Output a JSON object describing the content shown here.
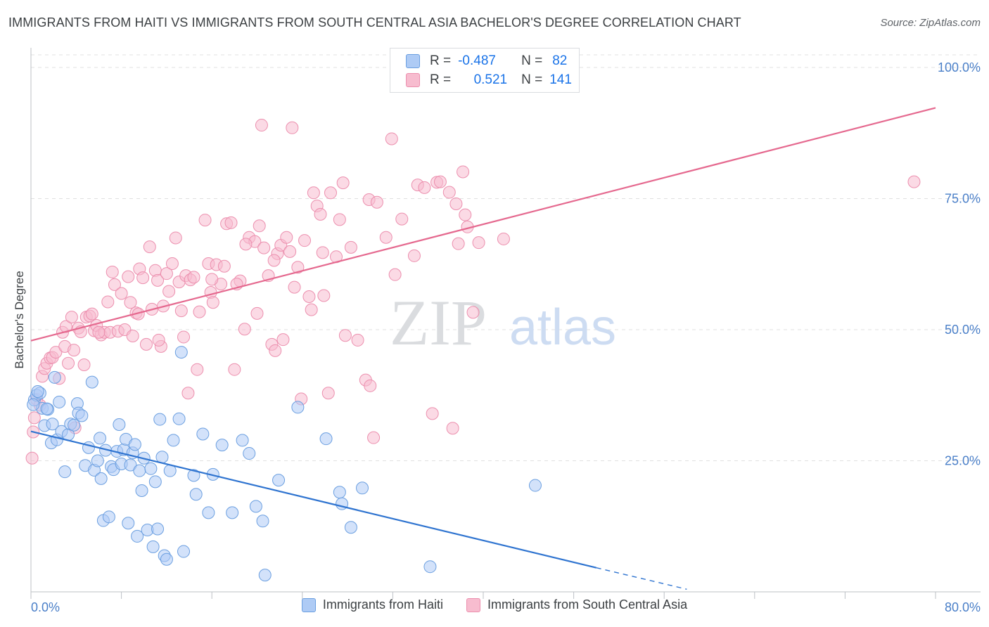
{
  "title": "IMMIGRANTS FROM HAITI VS IMMIGRANTS FROM SOUTH CENTRAL ASIA BACHELOR'S DEGREE CORRELATION CHART",
  "source": "Source: ZipAtlas.com",
  "watermark": {
    "zip": "ZIP",
    "atlas": "atlas"
  },
  "legend_top": {
    "haiti": {
      "r_label": "R =",
      "r_value": "-0.487",
      "n_label": "N =",
      "n_value": "82"
    },
    "asia": {
      "r_label": "R =",
      "r_value": "0.521",
      "n_label": "N =",
      "n_value": "141"
    }
  },
  "colors": {
    "haiti_fill": "#aecbf5",
    "haiti_stroke": "#6b9fe0",
    "haiti_line": "#2f74d0",
    "asia_fill": "#f7bccf",
    "asia_stroke": "#ec8fae",
    "asia_line": "#e5698f",
    "tick_label": "#4a7fc8",
    "grid": "#e0e0e0"
  },
  "chart_data": {
    "type": "scatter",
    "title": "IMMIGRANTS FROM HAITI VS IMMIGRANTS FROM SOUTH CENTRAL ASIA BACHELOR'S DEGREE CORRELATION CHART",
    "xlabel": "",
    "ylabel": "Bachelor's Degree",
    "xlim": [
      0,
      80
    ],
    "ylim": [
      0,
      100
    ],
    "x_tick_labels": [
      "0.0%",
      "80.0%"
    ],
    "y_ticks": [
      25,
      50,
      75,
      100
    ],
    "y_tick_labels": [
      "25.0%",
      "50.0%",
      "75.0%",
      "100.0%"
    ],
    "grid": true,
    "series": [
      {
        "name": "Immigrants from Haiti",
        "trend": {
          "x_start": 0,
          "y_start": 30.6,
          "x_solid_end": 50,
          "y_solid_end": 4.6,
          "x_dash_end": 58,
          "y_dash_end": 0.5
        },
        "points": [
          [
            0.3,
            36.6
          ],
          [
            0.5,
            37.5
          ],
          [
            0.8,
            37.9
          ],
          [
            1.0,
            35.0
          ],
          [
            1.2,
            31.7
          ],
          [
            1.5,
            34.8
          ],
          [
            1.8,
            28.4
          ],
          [
            1.9,
            32.0
          ],
          [
            2.1,
            40.9
          ],
          [
            2.3,
            29.0
          ],
          [
            2.5,
            36.2
          ],
          [
            2.7,
            30.6
          ],
          [
            3.0,
            22.9
          ],
          [
            3.3,
            30.0
          ],
          [
            3.5,
            32.0
          ],
          [
            3.8,
            31.8
          ],
          [
            4.1,
            35.9
          ],
          [
            4.2,
            34.1
          ],
          [
            4.5,
            33.6
          ],
          [
            4.8,
            24.1
          ],
          [
            5.1,
            27.5
          ],
          [
            5.4,
            40.0
          ],
          [
            5.6,
            23.2
          ],
          [
            5.9,
            25.0
          ],
          [
            6.1,
            29.3
          ],
          [
            6.2,
            21.6
          ],
          [
            6.4,
            13.6
          ],
          [
            6.6,
            27.0
          ],
          [
            6.9,
            14.3
          ],
          [
            7.1,
            23.9
          ],
          [
            7.3,
            23.3
          ],
          [
            7.6,
            26.8
          ],
          [
            7.8,
            31.9
          ],
          [
            8.0,
            24.4
          ],
          [
            8.2,
            27.1
          ],
          [
            8.4,
            29.1
          ],
          [
            8.6,
            13.1
          ],
          [
            8.8,
            24.2
          ],
          [
            9.0,
            26.5
          ],
          [
            9.2,
            28.1
          ],
          [
            9.4,
            10.6
          ],
          [
            9.6,
            23.1
          ],
          [
            9.8,
            19.3
          ],
          [
            10.0,
            25.5
          ],
          [
            10.3,
            11.8
          ],
          [
            10.6,
            23.5
          ],
          [
            10.8,
            8.6
          ],
          [
            11.0,
            21.0
          ],
          [
            11.2,
            12.0
          ],
          [
            11.4,
            32.9
          ],
          [
            11.6,
            25.7
          ],
          [
            11.8,
            6.9
          ],
          [
            12.0,
            6.2
          ],
          [
            12.3,
            23.1
          ],
          [
            12.6,
            28.9
          ],
          [
            13.1,
            33.0
          ],
          [
            13.3,
            45.7
          ],
          [
            13.5,
            7.7
          ],
          [
            14.4,
            22.2
          ],
          [
            14.6,
            18.6
          ],
          [
            15.2,
            30.1
          ],
          [
            15.7,
            15.1
          ],
          [
            16.1,
            22.4
          ],
          [
            16.9,
            28.0
          ],
          [
            17.8,
            15.1
          ],
          [
            18.7,
            28.9
          ],
          [
            19.3,
            26.4
          ],
          [
            19.9,
            16.3
          ],
          [
            20.5,
            13.5
          ],
          [
            20.7,
            3.2
          ],
          [
            21.9,
            21.3
          ],
          [
            23.6,
            35.2
          ],
          [
            26.1,
            29.2
          ],
          [
            27.3,
            19.0
          ],
          [
            27.5,
            16.8
          ],
          [
            28.3,
            12.3
          ],
          [
            29.3,
            19.8
          ],
          [
            35.3,
            4.8
          ],
          [
            44.6,
            20.3
          ],
          [
            0.2,
            35.7
          ],
          [
            0.6,
            38.2
          ],
          [
            1.4,
            34.9
          ]
        ]
      },
      {
        "name": "Immigrants from South Central Asia",
        "trend": {
          "x_start": 0,
          "y_start": 47.9,
          "x_end": 80,
          "y_end": 92.3
        },
        "points": [
          [
            0.1,
            25.5
          ],
          [
            0.2,
            30.5
          ],
          [
            0.3,
            33.2
          ],
          [
            0.5,
            36.7
          ],
          [
            1.0,
            41.1
          ],
          [
            1.2,
            42.6
          ],
          [
            1.4,
            43.6
          ],
          [
            1.7,
            44.6
          ],
          [
            1.9,
            44.7
          ],
          [
            2.2,
            45.7
          ],
          [
            2.8,
            49.5
          ],
          [
            3.0,
            46.8
          ],
          [
            3.1,
            50.6
          ],
          [
            3.3,
            43.6
          ],
          [
            3.6,
            52.4
          ],
          [
            3.8,
            46.1
          ],
          [
            4.2,
            50.3
          ],
          [
            4.4,
            49.6
          ],
          [
            4.7,
            43.3
          ],
          [
            4.9,
            52.4
          ],
          [
            5.2,
            52.6
          ],
          [
            5.4,
            53.0
          ],
          [
            5.6,
            49.8
          ],
          [
            5.8,
            50.8
          ],
          [
            6.2,
            49.0
          ],
          [
            6.5,
            49.5
          ],
          [
            6.8,
            55.3
          ],
          [
            7.0,
            49.5
          ],
          [
            7.2,
            61.0
          ],
          [
            7.4,
            58.6
          ],
          [
            7.7,
            49.7
          ],
          [
            8.0,
            56.9
          ],
          [
            8.3,
            50.0
          ],
          [
            8.6,
            60.1
          ],
          [
            8.8,
            55.2
          ],
          [
            9.0,
            48.8
          ],
          [
            9.3,
            53.2
          ],
          [
            9.6,
            61.6
          ],
          [
            9.9,
            59.9
          ],
          [
            10.2,
            47.2
          ],
          [
            10.5,
            65.8
          ],
          [
            10.7,
            53.9
          ],
          [
            11.0,
            61.3
          ],
          [
            11.2,
            59.4
          ],
          [
            11.5,
            46.8
          ],
          [
            11.7,
            54.5
          ],
          [
            12.0,
            60.7
          ],
          [
            12.2,
            57.3
          ],
          [
            12.5,
            62.6
          ],
          [
            12.8,
            67.5
          ],
          [
            13.1,
            59.1
          ],
          [
            13.3,
            53.6
          ],
          [
            13.5,
            48.6
          ],
          [
            13.7,
            60.3
          ],
          [
            13.9,
            37.9
          ],
          [
            14.1,
            59.5
          ],
          [
            14.4,
            60.0
          ],
          [
            14.7,
            42.4
          ],
          [
            14.9,
            53.4
          ],
          [
            15.4,
            70.9
          ],
          [
            15.7,
            62.6
          ],
          [
            15.9,
            57.1
          ],
          [
            16.1,
            55.2
          ],
          [
            16.4,
            62.4
          ],
          [
            16.8,
            58.7
          ],
          [
            17.1,
            62.1
          ],
          [
            17.3,
            70.2
          ],
          [
            17.7,
            70.4
          ],
          [
            18.0,
            42.4
          ],
          [
            18.5,
            59.3
          ],
          [
            18.9,
            50.1
          ],
          [
            19.3,
            67.6
          ],
          [
            19.8,
            66.8
          ],
          [
            20.0,
            53.1
          ],
          [
            20.2,
            69.8
          ],
          [
            20.4,
            89.0
          ],
          [
            20.6,
            65.6
          ],
          [
            21.0,
            60.3
          ],
          [
            21.3,
            47.2
          ],
          [
            21.6,
            46.0
          ],
          [
            21.8,
            64.5
          ],
          [
            22.1,
            66.1
          ],
          [
            22.3,
            48.1
          ],
          [
            22.6,
            67.6
          ],
          [
            22.9,
            64.9
          ],
          [
            23.1,
            88.5
          ],
          [
            23.6,
            61.9
          ],
          [
            23.9,
            36.8
          ],
          [
            24.2,
            67.0
          ],
          [
            24.6,
            56.3
          ],
          [
            24.8,
            53.8
          ],
          [
            25.0,
            76.1
          ],
          [
            25.3,
            73.6
          ],
          [
            25.6,
            72.0
          ],
          [
            25.8,
            64.7
          ],
          [
            26.3,
            37.9
          ],
          [
            26.5,
            76.1
          ],
          [
            27.0,
            63.9
          ],
          [
            27.3,
            71.0
          ],
          [
            27.6,
            78.0
          ],
          [
            28.3,
            65.7
          ],
          [
            28.9,
            48.0
          ],
          [
            29.6,
            40.4
          ],
          [
            29.9,
            74.8
          ],
          [
            30.3,
            29.4
          ],
          [
            30.6,
            74.3
          ],
          [
            31.4,
            67.6
          ],
          [
            31.9,
            86.4
          ],
          [
            32.2,
            60.5
          ],
          [
            32.8,
            71.1
          ],
          [
            33.9,
            64.1
          ],
          [
            34.2,
            77.6
          ],
          [
            34.8,
            77.1
          ],
          [
            35.5,
            34.0
          ],
          [
            35.9,
            78.1
          ],
          [
            36.2,
            78.2
          ],
          [
            37.0,
            76.2
          ],
          [
            37.3,
            31.2
          ],
          [
            37.6,
            74.0
          ],
          [
            37.8,
            66.4
          ],
          [
            38.2,
            80.1
          ],
          [
            38.4,
            71.9
          ],
          [
            38.6,
            69.6
          ],
          [
            39.1,
            53.3
          ],
          [
            39.6,
            66.6
          ],
          [
            41.8,
            67.3
          ],
          [
            78.1,
            78.2
          ],
          [
            3.9,
            31.3
          ],
          [
            6.0,
            49.5
          ],
          [
            9.5,
            53.0
          ],
          [
            11.3,
            48.0
          ],
          [
            16.0,
            59.6
          ],
          [
            18.2,
            58.7
          ],
          [
            19.0,
            66.3
          ],
          [
            21.5,
            63.2
          ],
          [
            23.3,
            58.1
          ],
          [
            25.9,
            56.5
          ],
          [
            27.8,
            48.9
          ],
          [
            30.0,
            39.3
          ],
          [
            0.8,
            35.6
          ],
          [
            2.5,
            40.7
          ]
        ]
      }
    ]
  }
}
